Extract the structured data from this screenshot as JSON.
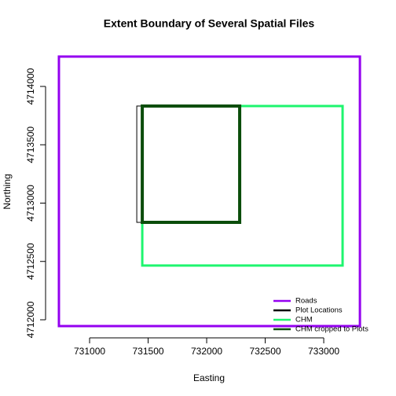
{
  "chart_data": {
    "type": "rect",
    "title": "Extent Boundary of Several Spatial Files",
    "x_label": "Easting",
    "y_label": "Northing",
    "xlim": [
      730624,
      733389
    ],
    "ylim": [
      4711845,
      4714357
    ],
    "xticks": [
      731000,
      731500,
      732000,
      732500,
      733000
    ],
    "yticks": [
      4712000,
      4712500,
      4713000,
      4713500,
      4714000
    ],
    "legend": "bottomright",
    "series": [
      {
        "name": "Roads",
        "color": "#9400f0",
        "linewidth": 3,
        "xmin": 730738,
        "xmax": 733309,
        "ymin": 4711946,
        "ymax": 4714256
      },
      {
        "name": "Plot Locations",
        "color": "#000000",
        "linewidth": 1,
        "xmin": 731403,
        "xmax": 732282,
        "ymin": 4712835,
        "ymax": 4713832
      },
      {
        "name": "CHM",
        "color": "#1ef56e",
        "linewidth": 3,
        "xmin": 731450,
        "xmax": 733161,
        "ymin": 4712465,
        "ymax": 4713832
      },
      {
        "name": "CHM cropped to Plots",
        "color": "#0b4d0b",
        "linewidth": 4,
        "xmin": 731450,
        "xmax": 732282,
        "ymin": 4712835,
        "ymax": 4713832
      }
    ]
  }
}
